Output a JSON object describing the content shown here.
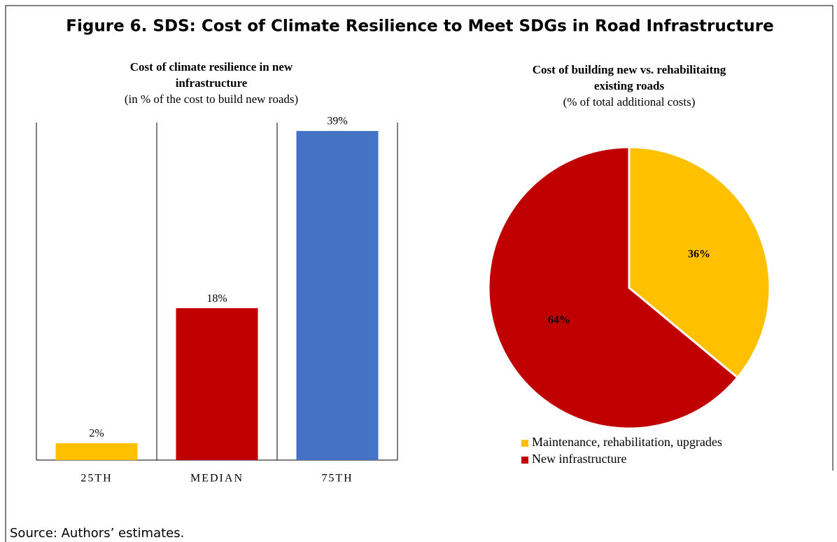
{
  "title": "Figure 6. SDS: Cost of Climate Resilience to Meet SDGs in Road Infrastructure",
  "source": "Source: Authors’ estimates.",
  "chart_data": [
    {
      "type": "bar",
      "title_lines": [
        "Cost of climate resilience in new",
        "infrastructure"
      ],
      "subtitle": "(in % of the cost to build new roads)",
      "categories": [
        "25TH",
        "MEDIAN",
        "75TH"
      ],
      "values": [
        2,
        18,
        39
      ],
      "value_labels": [
        "2%",
        "18%",
        "39%"
      ],
      "colors": [
        "#ffc000",
        "#c00000",
        "#4472c4"
      ],
      "ylim": [
        0,
        40
      ]
    },
    {
      "type": "pie",
      "title_lines": [
        "Cost of building new vs. rehabilitaitng",
        "existing roads"
      ],
      "subtitle": "(% of total additional costs)",
      "categories": [
        "Maintenance, rehabilitation, upgrades",
        "New infrastructure"
      ],
      "values": [
        36,
        64
      ],
      "value_labels": [
        "36%",
        "64%"
      ],
      "colors": [
        "#ffc000",
        "#c00000"
      ],
      "legend": "bottom-left"
    }
  ]
}
